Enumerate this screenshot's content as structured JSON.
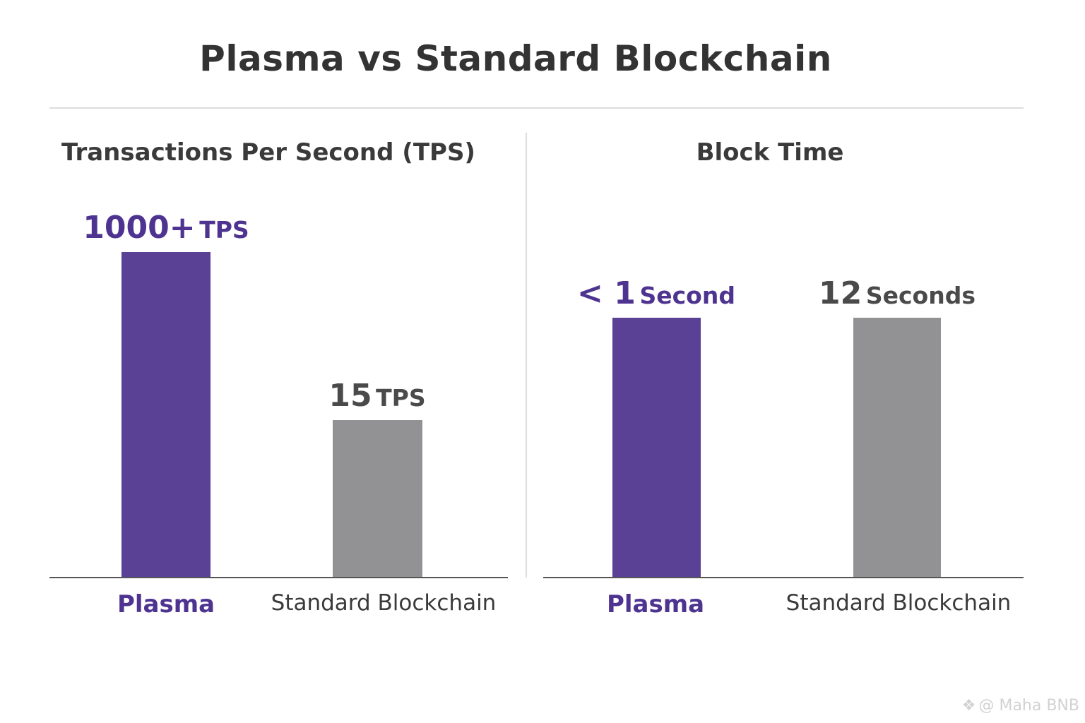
{
  "title": "Plasma vs Standard Blockchain",
  "colors": {
    "plasma": "#5a4196",
    "standard": "#929295",
    "plasma_text": "#4e3490",
    "standard_text": "#4a4a4a"
  },
  "watermark": {
    "icon": "binance-diamond-icon",
    "text": "@ Maha BNB"
  },
  "chart_data": [
    {
      "type": "bar",
      "title": "Transactions Per Second (TPS)",
      "categories": [
        "Plasma",
        "Standard Blockchain"
      ],
      "values": [
        1000,
        15
      ],
      "value_labels": [
        {
          "num": "1000+",
          "unit": "TPS"
        },
        {
          "num": "15",
          "unit": "TPS"
        }
      ],
      "xlabel": "",
      "ylabel": "",
      "grid": false,
      "legend": "none"
    },
    {
      "type": "bar",
      "title": "Block Time",
      "categories": [
        "Plasma",
        "Standard Blockchain"
      ],
      "values": [
        1,
        12
      ],
      "value_labels": [
        {
          "num": "< 1",
          "unit": "Second"
        },
        {
          "num": "12",
          "unit": "Seconds"
        }
      ],
      "xlabel": "",
      "ylabel": "",
      "grid": false,
      "legend": "none"
    }
  ]
}
